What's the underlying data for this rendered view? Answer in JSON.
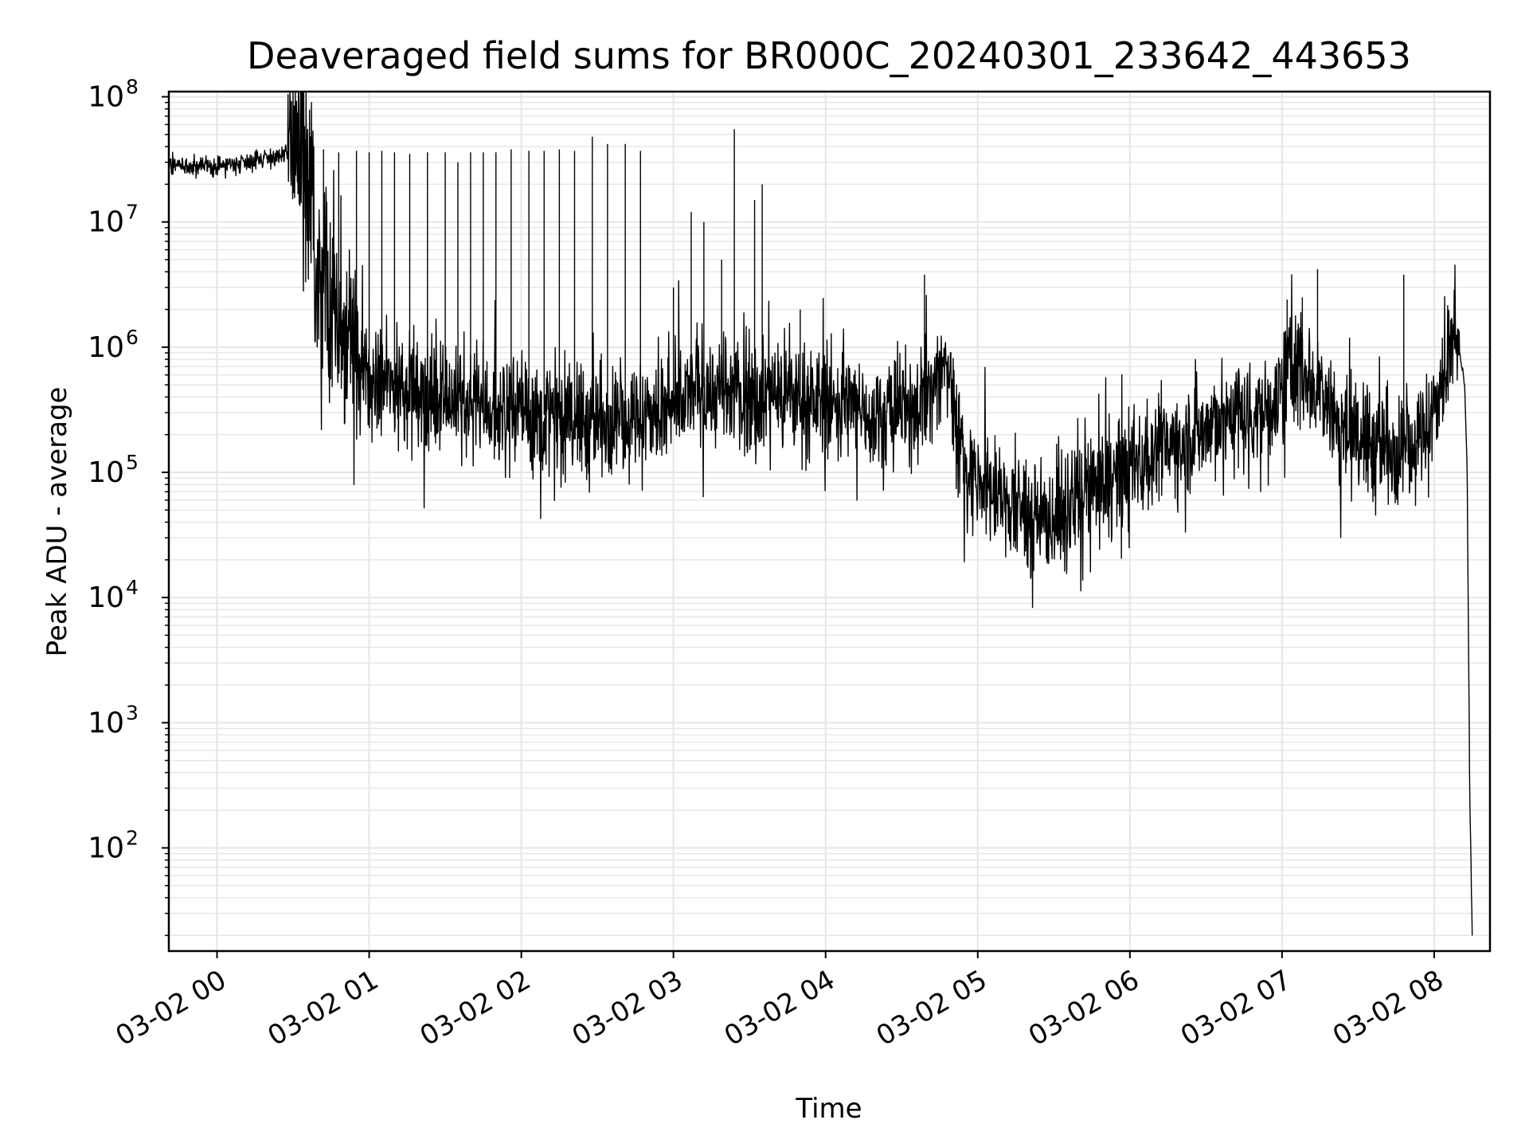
{
  "chart_data": {
    "type": "line",
    "title": "Deaveraged field sums for BR000C_20240301_233642_443653",
    "xlabel": "Time",
    "ylabel": "Peak ADU - average",
    "yscale": "log",
    "xlim": [
      "2024-03-01T23:41:00",
      "2024-03-02T08:22:00"
    ],
    "ylim": [
      15,
      110000000
    ],
    "grid": {
      "major": true,
      "minor": true
    },
    "legend": "none",
    "x_tick_labels": [
      "03-02 00",
      "03-02 01",
      "03-02 02",
      "03-02 03",
      "03-02 04",
      "03-02 05",
      "03-02 06",
      "03-02 07",
      "03-02 08"
    ],
    "x_ticks": [
      "2024-03-02T00:00:00",
      "2024-03-02T01:00:00",
      "2024-03-02T02:00:00",
      "2024-03-02T03:00:00",
      "2024-03-02T04:00:00",
      "2024-03-02T05:00:00",
      "2024-03-02T06:00:00",
      "2024-03-02T07:00:00",
      "2024-03-02T08:00:00"
    ],
    "y_ticks": [
      {
        "value": 100,
        "base": "10",
        "exp": "2"
      },
      {
        "value": 1000,
        "base": "10",
        "exp": "3"
      },
      {
        "value": 10000,
        "base": "10",
        "exp": "4"
      },
      {
        "value": 100000,
        "base": "10",
        "exp": "5"
      },
      {
        "value": 1000000,
        "base": "10",
        "exp": "6"
      },
      {
        "value": 10000000,
        "base": "10",
        "exp": "7"
      },
      {
        "value": 100000000,
        "base": "10",
        "exp": "8"
      }
    ],
    "line_color": "#000000",
    "grid_color": "#e6e6e6",
    "series": [
      {
        "envelope": {
          "x": [
            "2024-03-01T23:41:00",
            "2024-03-01T23:50:00",
            "2024-03-02T00:00:00",
            "2024-03-02T00:10:00",
            "2024-03-02T00:20:00",
            "2024-03-02T00:28:00",
            "2024-03-02T00:33:00",
            "2024-03-02T00:38:00",
            "2024-03-02T00:45:00",
            "2024-03-02T00:52:00",
            "2024-03-02T01:00:00",
            "2024-03-02T01:10:00",
            "2024-03-02T01:20:00",
            "2024-03-02T01:30:00",
            "2024-03-02T01:45:00",
            "2024-03-02T02:00:00",
            "2024-03-02T02:15:00",
            "2024-03-02T02:30:00",
            "2024-03-02T02:45:00",
            "2024-03-02T03:00:00",
            "2024-03-02T03:10:00",
            "2024-03-02T03:20:00",
            "2024-03-02T03:35:00",
            "2024-03-02T03:50:00",
            "2024-03-02T04:05:00",
            "2024-03-02T04:20:00",
            "2024-03-02T04:35:00",
            "2024-03-02T04:42:00",
            "2024-03-02T04:47:00",
            "2024-03-02T04:50:00",
            "2024-03-02T04:55:00",
            "2024-03-02T05:05:00",
            "2024-03-02T05:15:00",
            "2024-03-02T05:28:00",
            "2024-03-02T05:40:00",
            "2024-03-02T05:55:00",
            "2024-03-02T06:10:00",
            "2024-03-02T06:25:00",
            "2024-03-02T06:40:00",
            "2024-03-02T06:55:00",
            "2024-03-02T07:05:00",
            "2024-03-02T07:15:00",
            "2024-03-02T07:25:00",
            "2024-03-02T07:35:00",
            "2024-03-02T07:45:00",
            "2024-03-02T07:55:00",
            "2024-03-02T08:00:00",
            "2024-03-02T08:04:00",
            "2024-03-02T08:07:00",
            "2024-03-02T08:10:00",
            "2024-03-02T08:12:00",
            "2024-03-02T08:13:00",
            "2024-03-02T08:14:00",
            "2024-03-02T08:15:00"
          ],
          "y": [
            30000000,
            27000000,
            28000000,
            30000000,
            33000000,
            34000000,
            25000000,
            6000000,
            2000000,
            700000,
            500000,
            500000,
            450000,
            400000,
            350000,
            300000,
            280000,
            260000,
            280000,
            300000,
            500000,
            400000,
            420000,
            400000,
            350000,
            300000,
            320000,
            500000,
            700000,
            500000,
            100000,
            70000,
            50000,
            40000,
            60000,
            100000,
            150000,
            200000,
            300000,
            300000,
            800000,
            500000,
            200000,
            180000,
            150000,
            200000,
            300000,
            600000,
            1100000,
            900000,
            500000,
            100000,
            300,
            20
          ]
        },
        "spikes": [
          [
            "2024-03-02T00:42:00",
            38000000
          ],
          [
            "2024-03-02T00:48:00",
            36000000
          ],
          [
            "2024-03-02T00:55:00",
            37000000
          ],
          [
            "2024-03-02T01:00:00",
            36000000
          ],
          [
            "2024-03-02T01:05:00",
            37000000
          ],
          [
            "2024-03-02T01:10:00",
            36000000
          ],
          [
            "2024-03-02T01:16:00",
            35000000
          ],
          [
            "2024-03-02T01:23:00",
            36000000
          ],
          [
            "2024-03-02T01:30:00",
            36000000
          ],
          [
            "2024-03-02T01:35:00",
            30000000
          ],
          [
            "2024-03-02T01:40:00",
            36000000
          ],
          [
            "2024-03-02T01:45:00",
            36000000
          ],
          [
            "2024-03-02T01:50:00",
            36000000
          ],
          [
            "2024-03-02T01:56:00",
            38000000
          ],
          [
            "2024-03-02T02:03:00",
            37000000
          ],
          [
            "2024-03-02T02:09:00",
            37000000
          ],
          [
            "2024-03-02T02:15:00",
            38000000
          ],
          [
            "2024-03-02T02:21:00",
            37000000
          ],
          [
            "2024-03-02T02:28:00",
            48000000
          ],
          [
            "2024-03-02T02:34:00",
            42000000
          ],
          [
            "2024-03-02T02:41:00",
            42000000
          ],
          [
            "2024-03-02T02:47:00",
            37000000
          ],
          [
            "2024-03-02T03:00:00",
            3000000
          ],
          [
            "2024-03-02T03:07:00",
            12000000
          ],
          [
            "2024-03-02T03:12:00",
            10000000
          ],
          [
            "2024-03-02T03:19:00",
            5000000
          ],
          [
            "2024-03-02T03:24:00",
            55000000
          ],
          [
            "2024-03-02T03:32:00",
            15000000
          ],
          [
            "2024-03-02T03:35:00",
            20000000
          ],
          [
            "2024-03-02T03:50:00",
            2000000
          ],
          [
            "2024-03-02T04:39:00",
            3800000
          ],
          [
            "2024-03-02T07:02:00",
            2400000
          ],
          [
            "2024-03-02T07:08:00",
            2500000
          ],
          [
            "2024-03-02T07:14:00",
            4200000
          ],
          [
            "2024-03-02T07:48:00",
            3800000
          ]
        ]
      }
    ]
  }
}
